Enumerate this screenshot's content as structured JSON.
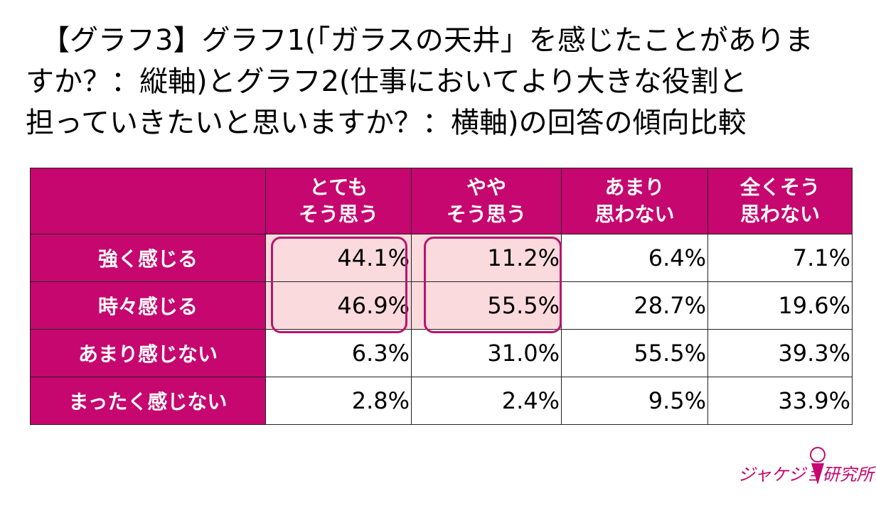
{
  "title_lines": [
    "【グラフ3】グラフ1(「ガラスの天井」を感じたことがありま",
    "すか？：縦軸)とグラフ2(仕事においてより大きな役割と",
    "担っていきたいと思いますか？：横軸)の回答の傾向比較"
  ],
  "table": {
    "header": [
      [
        "とても",
        "そう思う"
      ],
      [
        "やや",
        "そう思う"
      ],
      [
        "あまり",
        "思わない"
      ],
      [
        "全くそう",
        "思わない"
      ]
    ],
    "rows": [
      {
        "label": "強く感じる",
        "values": [
          "44.1%",
          "11.2%",
          "6.4%",
          "7.1%"
        ]
      },
      {
        "label": "時々感じる",
        "values": [
          "46.9%",
          "55.5%",
          "28.7%",
          "19.6%"
        ]
      },
      {
        "label": "あまり感じない",
        "values": [
          "6.3%",
          "31.0%",
          "55.5%",
          "39.3%"
        ]
      },
      {
        "label": "まったく感じない",
        "values": [
          "2.8%",
          "2.4%",
          "9.5%",
          "33.9%"
        ]
      }
    ]
  },
  "logo": "ジャケジョ研究所"
}
